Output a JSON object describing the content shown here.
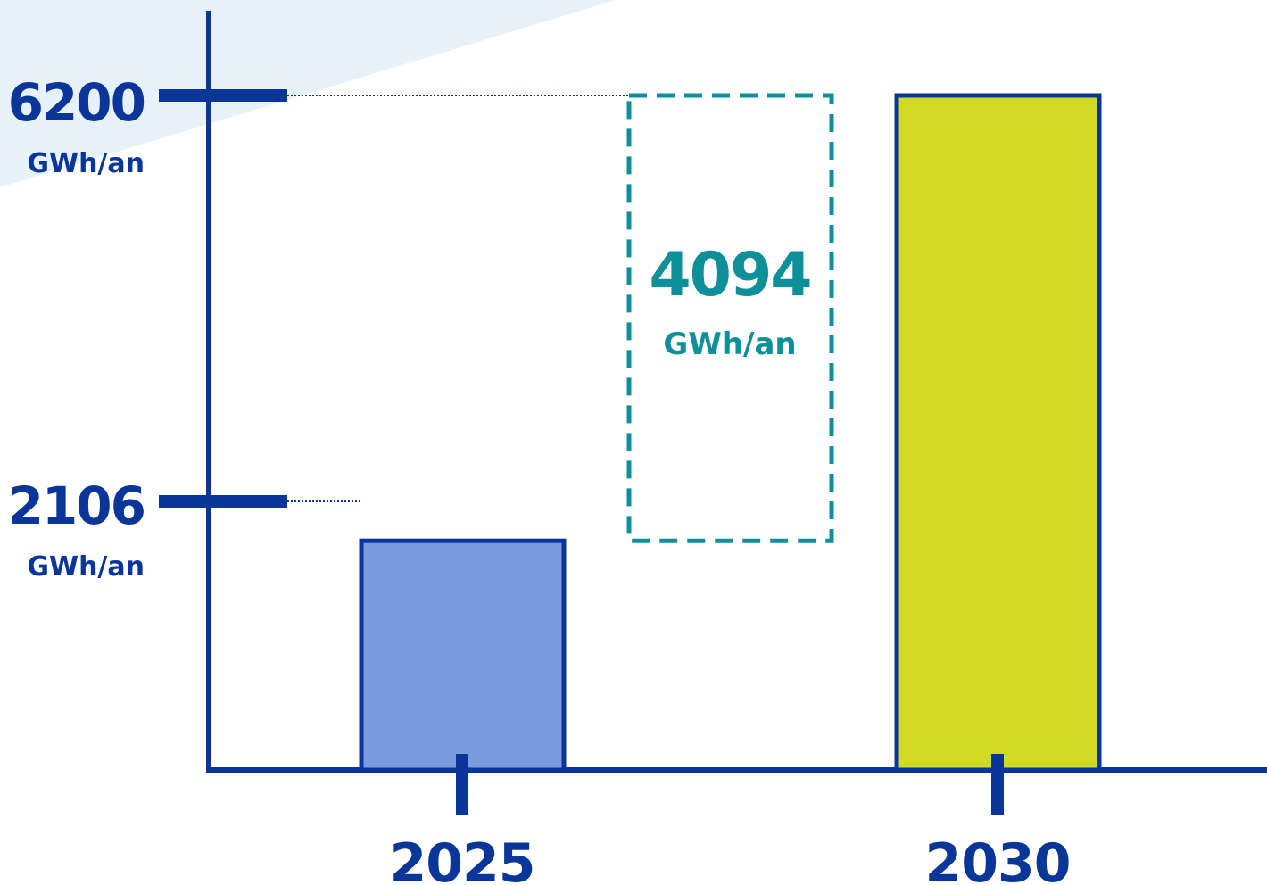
{
  "colors": {
    "axis": "#0a3599",
    "bar_2025": "#7b9bdc",
    "bar_2030": "#d0d923",
    "gap": "#0e8f9a",
    "background_accent": "#e6f1fa"
  },
  "chart_data": {
    "type": "bar",
    "categories": [
      "2025",
      "2030"
    ],
    "values": [
      2106,
      6200
    ],
    "unit": "GWh/an",
    "ylim": [
      0,
      7000
    ],
    "y_ticks": [
      {
        "value": "6200",
        "unit": "GWh/an"
      },
      {
        "value": "2106",
        "unit": "GWh/an"
      }
    ],
    "gap": {
      "from": 2106,
      "to": 6200,
      "value": "4094",
      "unit": "GWh/an"
    },
    "grid": false,
    "legend": "none"
  }
}
